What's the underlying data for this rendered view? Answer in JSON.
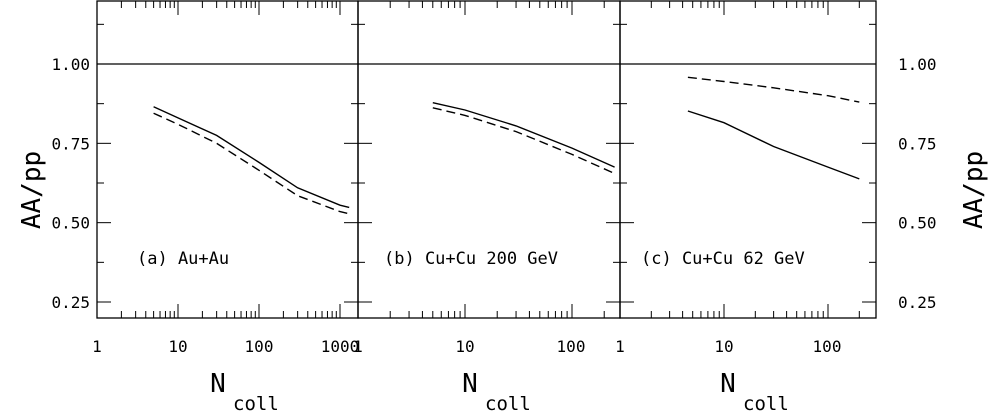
{
  "chart_data": [
    {
      "type": "line",
      "panel_label": "(a) Au+Au",
      "xscale": "log",
      "xlim": [
        1,
        1300
      ],
      "ylim": [
        0.2,
        1.18
      ],
      "x_ticklabels": [
        "1",
        "10",
        "100",
        "1000"
      ],
      "y_ticklabels": [
        "1.00",
        "0.75",
        "0.50",
        "0.25"
      ],
      "y_reference_line": 1.0,
      "series": [
        {
          "style": "solid",
          "x": [
            5,
            10,
            30,
            100,
            300,
            1000,
            1300
          ],
          "y": [
            0.865,
            0.83,
            0.775,
            0.69,
            0.61,
            0.555,
            0.548
          ]
        },
        {
          "style": "dashed",
          "x": [
            5,
            10,
            30,
            100,
            300,
            1000,
            1300
          ],
          "y": [
            0.845,
            0.81,
            0.75,
            0.665,
            0.585,
            0.535,
            0.528
          ]
        }
      ]
    },
    {
      "type": "line",
      "panel_label": "(b) Cu+Cu 200 GeV",
      "xscale": "log",
      "xlim": [
        1,
        300
      ],
      "ylim": [
        0.2,
        1.18
      ],
      "x_ticklabels": [
        "1",
        "10",
        "100"
      ],
      "y_ticklabels": [
        "1.00",
        "0.75",
        "0.50",
        "0.25"
      ],
      "y_reference_line": 1.0,
      "series": [
        {
          "style": "solid",
          "x": [
            5,
            10,
            30,
            100,
            250
          ],
          "y": [
            0.878,
            0.855,
            0.805,
            0.735,
            0.675
          ]
        },
        {
          "style": "dashed",
          "x": [
            5,
            10,
            30,
            100,
            250
          ],
          "y": [
            0.862,
            0.838,
            0.787,
            0.715,
            0.655
          ]
        }
      ]
    },
    {
      "type": "line",
      "panel_label": "(c) Cu+Cu 62 GeV",
      "xscale": "log",
      "xlim": [
        1,
        300
      ],
      "ylim": [
        0.2,
        1.18
      ],
      "x_ticklabels": [
        "1",
        "10",
        "100"
      ],
      "y_ticklabels": [
        "1.00",
        "0.75",
        "0.50",
        "0.25"
      ],
      "y_reference_line": 1.0,
      "series": [
        {
          "style": "solid",
          "x": [
            4.5,
            10,
            30,
            100,
            200
          ],
          "y": [
            0.852,
            0.815,
            0.74,
            0.675,
            0.638
          ]
        },
        {
          "style": "dashed",
          "x": [
            4.5,
            10,
            30,
            100,
            200
          ],
          "y": [
            0.958,
            0.945,
            0.925,
            0.9,
            0.88
          ]
        }
      ]
    }
  ],
  "axes": {
    "ylabel": "AA/pp",
    "xlabel_main": "N",
    "xlabel_sub": "coll"
  }
}
